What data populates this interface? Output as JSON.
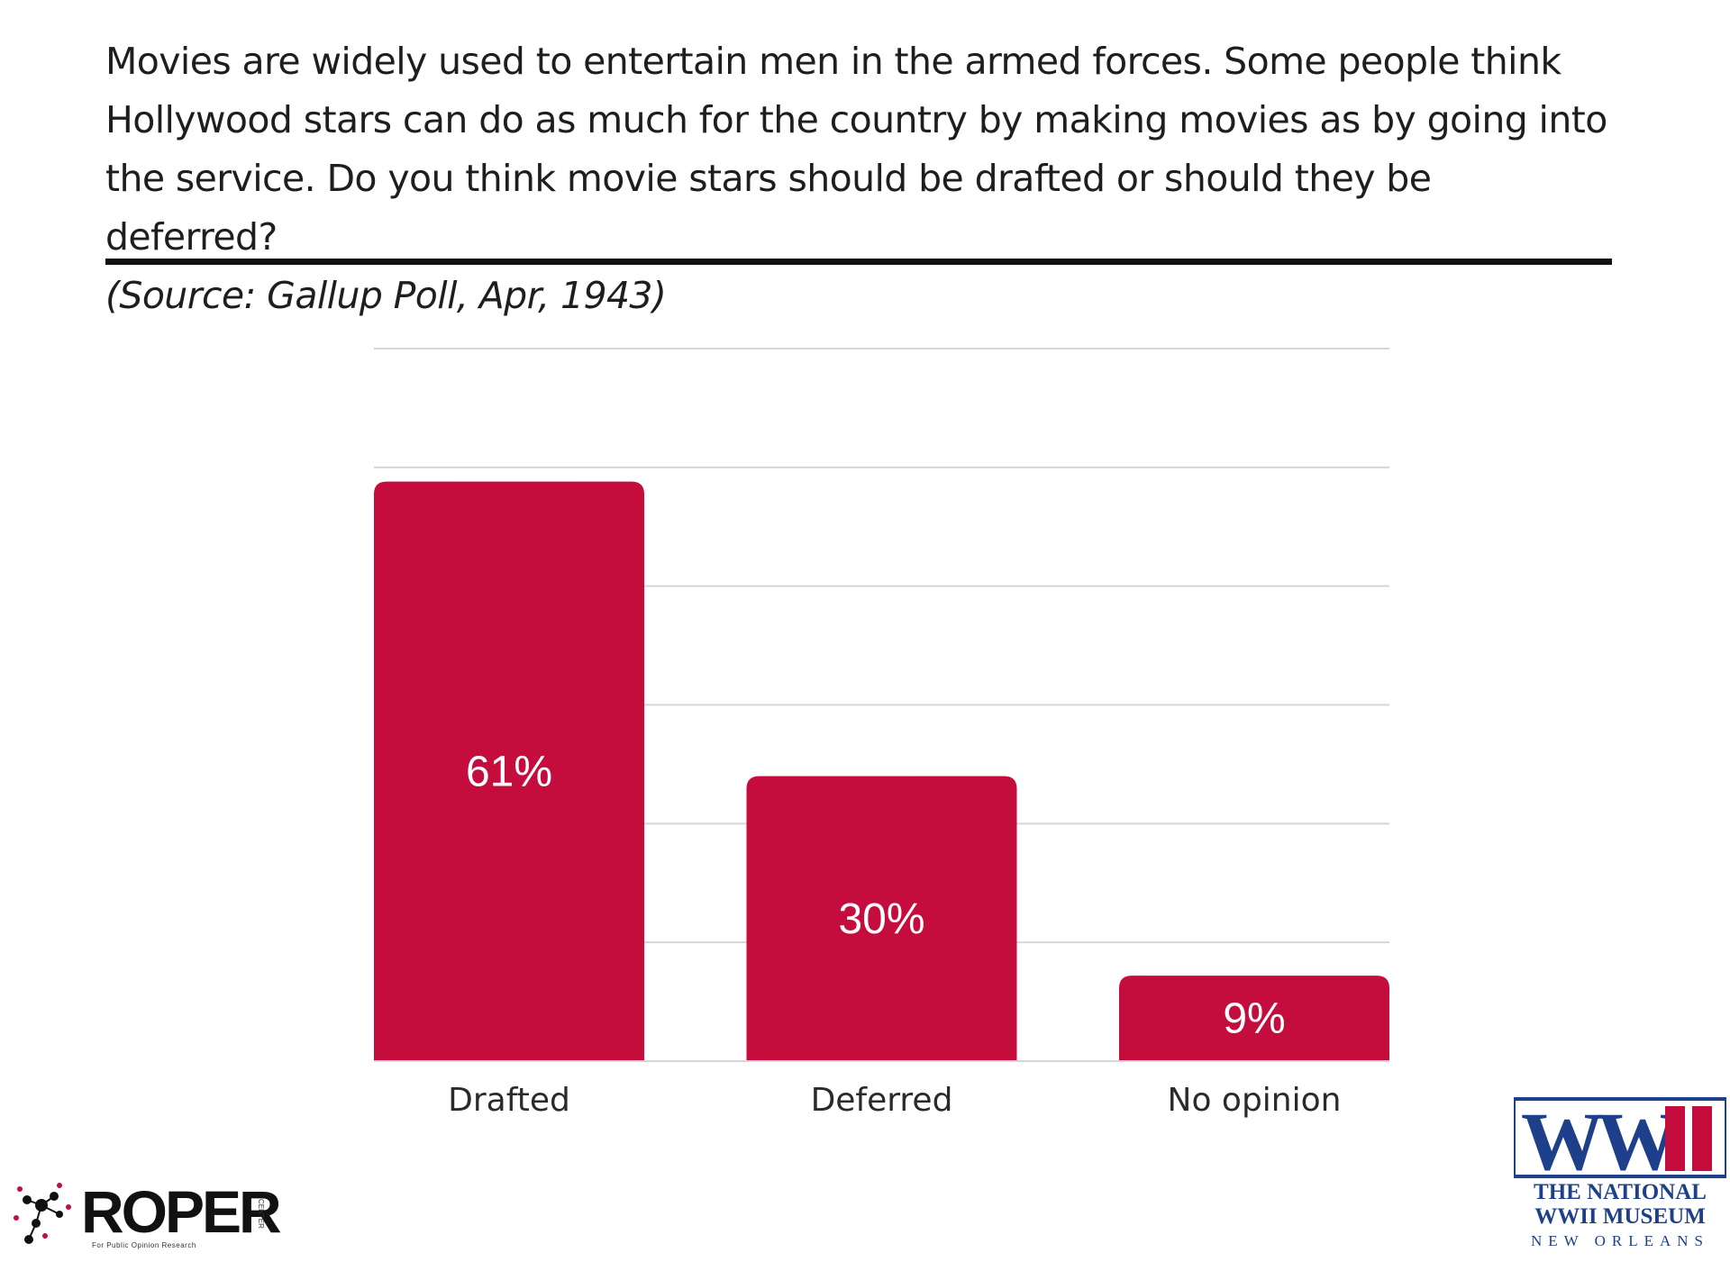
{
  "header": {
    "question": "Movies are widely used to entertain men in the armed forces. Some people think Hollywood stars can do as much for the country by making movies as by going into the service. Do you think movie stars should be drafted or should they be deferred?",
    "source": "(Source: Gallup Poll, Apr, 1943)"
  },
  "chart_data": {
    "type": "bar",
    "categories": [
      "Drafted",
      "Deferred",
      "No opinion"
    ],
    "values": [
      61,
      30,
      9
    ],
    "value_labels": [
      "61%",
      "30%",
      "9%"
    ],
    "ylim": [
      0,
      75
    ],
    "grid": true,
    "bar_color": "#c40d3c",
    "gridline_color": "#d6d6d6"
  },
  "logos": {
    "roper": {
      "name": "ROPER",
      "tagline": "For Public Opinion Research",
      "center": "CENTER"
    },
    "museum": {
      "mark": "WWII",
      "line1": "THE NATIONAL",
      "line2": "WWII MUSEUM",
      "line3": "NEW ORLEANS",
      "color": "#1e3f8a",
      "accent": "#c40d3c"
    }
  }
}
